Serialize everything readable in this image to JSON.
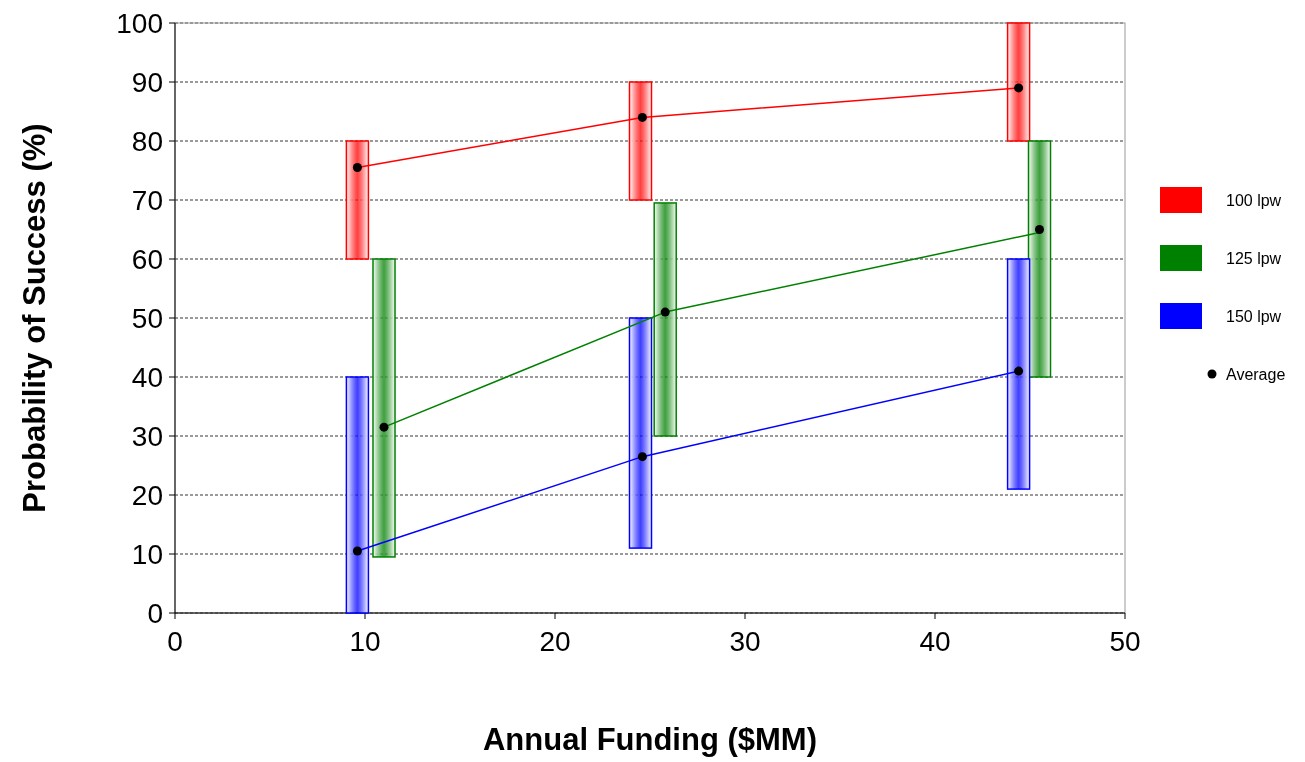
{
  "chart_data": {
    "type": "bar",
    "xlabel": "Annual Funding ($MM)",
    "ylabel": "Probability of Success (%)",
    "xlim": [
      0,
      50
    ],
    "xticks": [
      0,
      10,
      20,
      30,
      40,
      50
    ],
    "ylim": [
      0,
      100
    ],
    "yticks": [
      0,
      10,
      20,
      30,
      40,
      50,
      60,
      70,
      80,
      90,
      100
    ],
    "grid": "y",
    "legend": "right",
    "series": [
      {
        "name": "100 lpw",
        "color": "#ff0000",
        "x": [
          9.6,
          24.5,
          44.4
        ],
        "base": [
          60,
          70,
          80
        ],
        "values": [
          20,
          20,
          20
        ]
      },
      {
        "name": "125 lpw",
        "color": "#008000",
        "x": [
          11,
          25.8,
          45.5
        ],
        "base": [
          9.5,
          30,
          40
        ],
        "values": [
          50.5,
          39.5,
          40
        ]
      },
      {
        "name": "150 lpw",
        "color": "#0000ff",
        "x": [
          9.6,
          24.5,
          44.4
        ],
        "base": [
          0,
          11,
          21
        ],
        "values": [
          40,
          39,
          39
        ]
      },
      {
        "type": "line",
        "color": "#ff0000",
        "marker": "none",
        "x": [
          9.6,
          24.6,
          44.4
        ],
        "values": [
          75.5,
          84,
          89
        ]
      },
      {
        "type": "line",
        "color": "#008000",
        "marker": "none",
        "x": [
          11,
          25.8,
          45.5
        ],
        "values": [
          31.5,
          51,
          64.5
        ]
      },
      {
        "type": "line",
        "color": "#0000ff",
        "marker": "none",
        "x": [
          9.6,
          24.6,
          44.4
        ],
        "values": [
          10.5,
          26.5,
          41
        ]
      },
      {
        "type": "scatter",
        "name": "Average",
        "color": "#000000",
        "marker": "circle",
        "x": [
          9.6,
          24.6,
          44.4,
          11,
          25.8,
          45.5,
          9.6,
          24.6,
          44.4
        ],
        "values": [
          75.5,
          84,
          89,
          31.5,
          51,
          65,
          10.5,
          26.5,
          41
        ]
      }
    ]
  }
}
